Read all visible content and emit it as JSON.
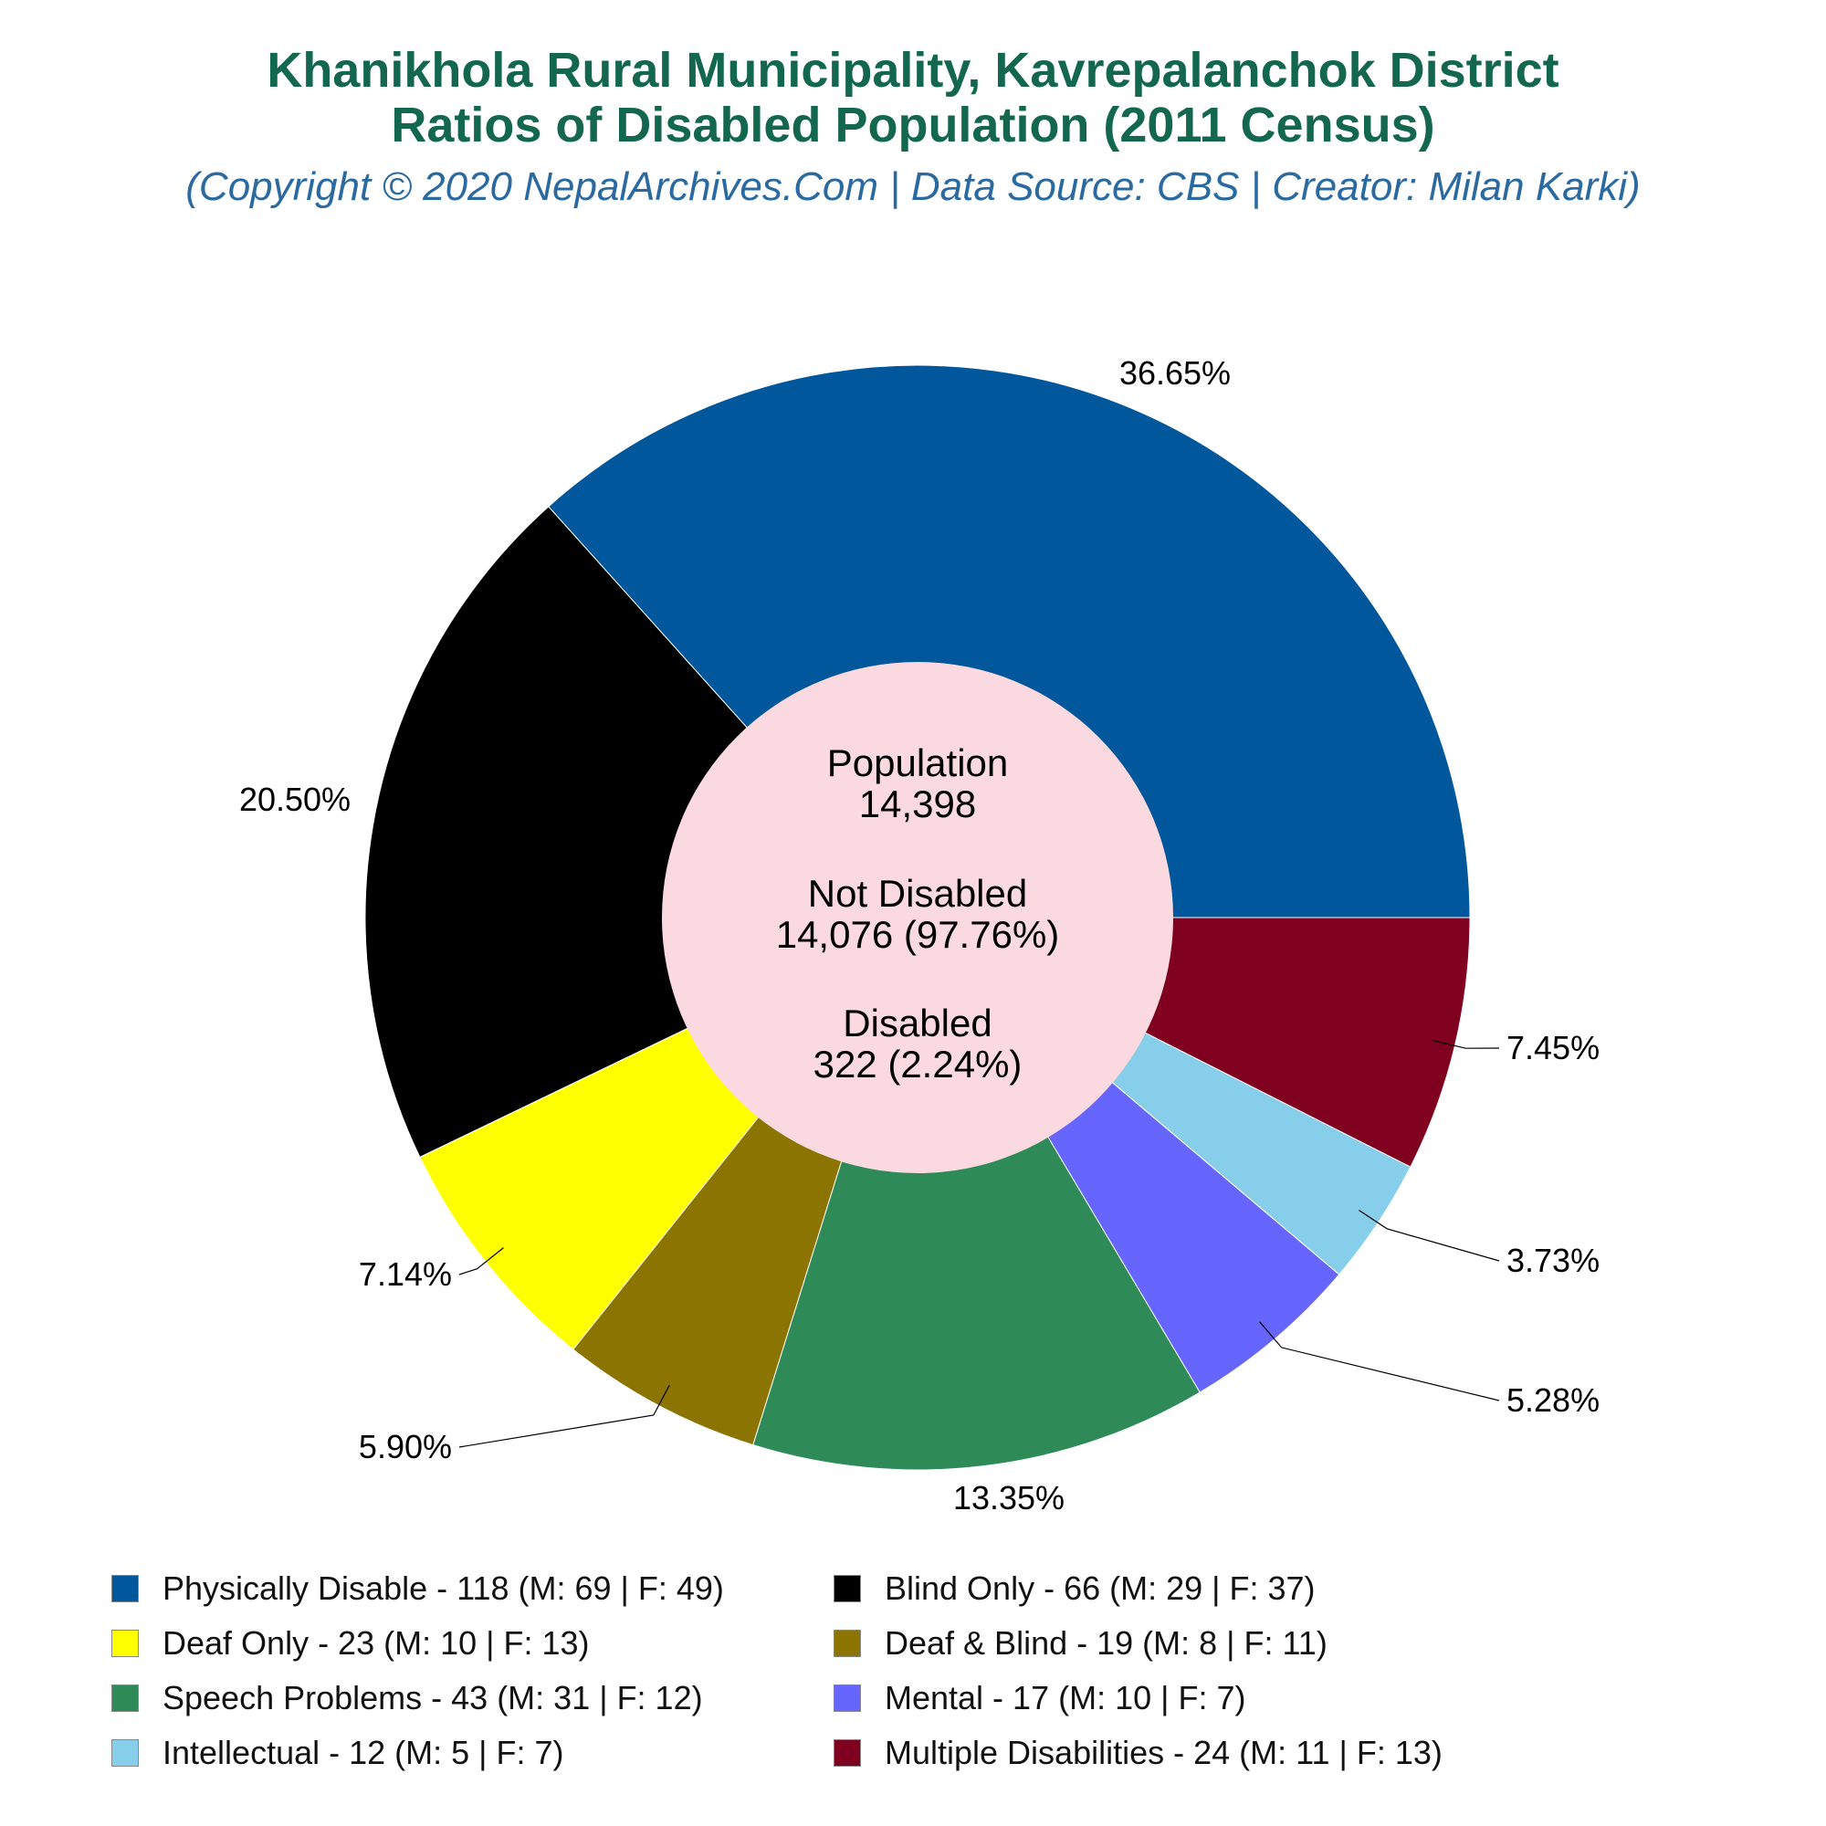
{
  "header": {
    "title_line1": "Khanikhola Rural Municipality, Kavrepalanchok District",
    "title_line2": "Ratios of Disabled Population (2011 Census)",
    "subtitle": "(Copyright © 2020 NepalArchives.Com | Data Source: CBS | Creator: Milan Karki)"
  },
  "center": {
    "population_label": "Population",
    "population_value": "14,398",
    "not_disabled_label": "Not Disabled",
    "not_disabled_value": "14,076 (97.76%)",
    "disabled_label": "Disabled",
    "disabled_value": "322 (2.24%)",
    "color": "#fbd9e0"
  },
  "chart_data": {
    "type": "pie",
    "donut": true,
    "start": "3 o'clock, counter-clockwise",
    "slices": [
      {
        "name": "Physically Disable",
        "value": 118,
        "male": 69,
        "female": 49,
        "percent_label": "36.65%",
        "color": "#01579b",
        "legend": "Physically Disable - 118 (M: 69 | F: 49)"
      },
      {
        "name": "Blind Only",
        "value": 66,
        "male": 29,
        "female": 37,
        "percent_label": "20.50%",
        "color": "#000000",
        "legend": "Blind Only - 66 (M: 29 | F: 37)"
      },
      {
        "name": "Deaf Only",
        "value": 23,
        "male": 10,
        "female": 13,
        "percent_label": "7.14%",
        "color": "#ffff00",
        "legend": "Deaf Only - 23 (M: 10 | F: 13)"
      },
      {
        "name": "Deaf & Blind",
        "value": 19,
        "male": 8,
        "female": 11,
        "percent_label": "5.90%",
        "color": "#8b7500",
        "legend": "Deaf & Blind - 19 (M: 8 | F: 11)"
      },
      {
        "name": "Speech Problems",
        "value": 43,
        "male": 31,
        "female": 12,
        "percent_label": "13.35%",
        "color": "#2e8b57",
        "legend": "Speech Problems - 43 (M: 31 | F: 12)"
      },
      {
        "name": "Mental",
        "value": 17,
        "male": 10,
        "female": 7,
        "percent_label": "5.28%",
        "color": "#6666ff",
        "legend": "Mental - 17 (M: 10 | F: 7)"
      },
      {
        "name": "Intellectual",
        "value": 12,
        "male": 5,
        "female": 7,
        "percent_label": "3.73%",
        "color": "#87ceeb",
        "legend": "Intellectual - 12 (M: 5 | F: 7)"
      },
      {
        "name": "Multiple Disabilities",
        "value": 24,
        "male": 11,
        "female": 13,
        "percent_label": "7.45%",
        "color": "#800020",
        "legend": "Multiple Disabilities - 24 (M: 11 | F: 13)"
      }
    ]
  }
}
